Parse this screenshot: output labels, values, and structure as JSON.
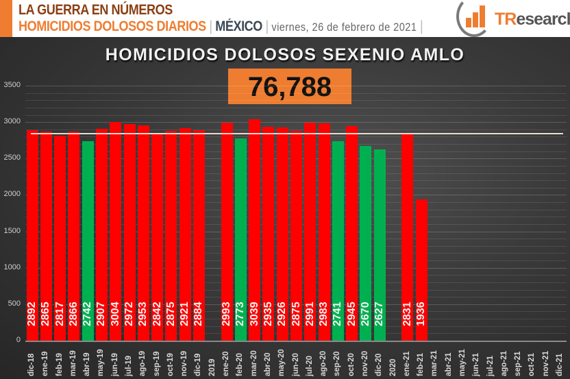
{
  "header": {
    "line1": "LA GUERRA EN NÚMEROS",
    "line2": "HOMICIDIOS DOLOSOS DIARIOS",
    "separator": "|",
    "country": "MÉXICO",
    "date": "viernes, 26 de febrero de 2021",
    "logo_text_prefix": "TR",
    "logo_text_suffix": "esearch",
    "logo_icon": "bar-chart-growth-icon"
  },
  "colors": {
    "accent_orange": "#ee7d31",
    "above_average_red": "#ff0000",
    "below_average_green": "#00b050",
    "background": "#3a3a3a",
    "reference_line": "#e8dcd0"
  },
  "chart": {
    "title": "HOMICIDIOS DOLOSOS SEXENIO AMLO",
    "total": "76,788"
  },
  "chart_data": {
    "type": "bar",
    "title": "HOMICIDIOS DOLOSOS SEXENIO AMLO",
    "subtitle_total": "76,788",
    "xlabel": "",
    "ylabel": "",
    "ylim": [
      0,
      3500
    ],
    "yticks": [
      0,
      500,
      1000,
      1500,
      2000,
      2500,
      3000,
      3500
    ],
    "grid": true,
    "legend": null,
    "reference_line": {
      "value": 2850,
      "description": "average line (approx.)"
    },
    "categories": [
      "dic-18",
      "ene-19",
      "feb-19",
      "mar-19",
      "abr-19",
      "may-19",
      "jun-19",
      "jul-19",
      "ago-19",
      "sep-19",
      "oct-19",
      "nov-19",
      "dic-19",
      "2019",
      "ene-20",
      "feb-20",
      "mar-20",
      "abr-20",
      "may-20",
      "jun-20",
      "jul-20",
      "ago-20",
      "sep-20",
      "oct-20",
      "nov-20",
      "dic-20",
      "2020",
      "ene-21",
      "feb-21",
      "mar-21",
      "abr-21",
      "may-21",
      "jun-21",
      "jul-21",
      "ago-21",
      "sep-21",
      "oct-21",
      "nov-21",
      "dic-21"
    ],
    "values": [
      2892,
      2865,
      2817,
      2866,
      2742,
      2907,
      3004,
      2972,
      2953,
      2842,
      2875,
      2921,
      2884,
      null,
      2993,
      2773,
      3039,
      2935,
      2926,
      2875,
      2991,
      2983,
      2741,
      2945,
      2670,
      2627,
      null,
      2831,
      1936,
      null,
      null,
      null,
      null,
      null,
      null,
      null,
      null,
      null,
      null
    ],
    "bar_colors": [
      "red",
      "red",
      "red",
      "red",
      "green",
      "red",
      "red",
      "red",
      "red",
      "red",
      "red",
      "red",
      "red",
      null,
      "red",
      "green",
      "red",
      "red",
      "red",
      "red",
      "red",
      "red",
      "green",
      "red",
      "green",
      "green",
      null,
      "red",
      "red",
      null,
      null,
      null,
      null,
      null,
      null,
      null,
      null,
      null,
      null
    ]
  }
}
